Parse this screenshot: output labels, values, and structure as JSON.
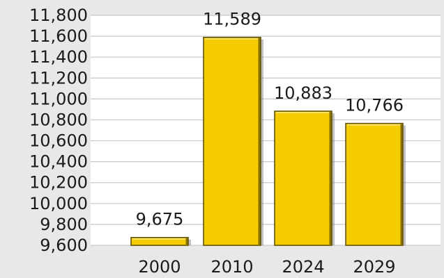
{
  "chart_data": {
    "type": "bar",
    "categories": [
      "2000",
      "2010",
      "2024",
      "2029"
    ],
    "values": [
      9675,
      11589,
      10883,
      10766
    ],
    "value_labels": [
      "9,675",
      "11,589",
      "10,883",
      "10,766"
    ],
    "title": "",
    "xlabel": "",
    "ylabel": "",
    "ylim": [
      9600,
      11800
    ],
    "yticks": [
      9600,
      9800,
      10000,
      10200,
      10400,
      10600,
      10800,
      11000,
      11200,
      11400,
      11600,
      11800
    ],
    "ytick_labels": [
      "9,600",
      "9,800",
      "10,000",
      "10,200",
      "10,400",
      "10,600",
      "10,800",
      "11,000",
      "11,200",
      "11,400",
      "11,600",
      "11,800"
    ],
    "grid": true,
    "legend": "none",
    "colors": {
      "bar_fill": "#f5cc00",
      "bar_edge": "#5a4a00",
      "bar_highlight": "#fbe46a",
      "plot_bg": "#ffffff",
      "page_bg": "#e8e8e8",
      "gridline": "#c8c8c8"
    }
  }
}
